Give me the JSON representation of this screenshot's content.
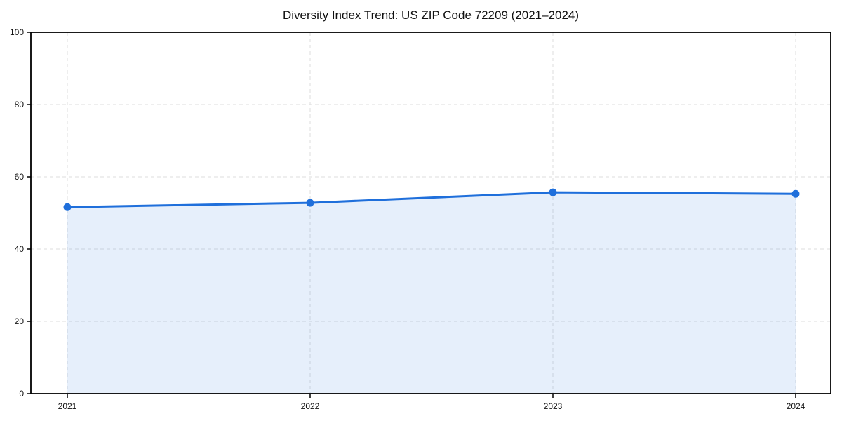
{
  "page": {
    "background": "#ffffff"
  },
  "chart_data": {
    "type": "area",
    "title": "Diversity Index Trend: US ZIP Code 72209 (2021–2024)",
    "categories": [
      "2021",
      "2022",
      "2023",
      "2024"
    ],
    "values": [
      51.6,
      52.8,
      55.7,
      55.3
    ],
    "xlabel": "",
    "ylabel": "",
    "ylim": [
      0,
      100
    ],
    "yticks": [
      0,
      20,
      40,
      60,
      80,
      100
    ],
    "grid": true,
    "grid_style": "dashed",
    "legend_position": "none",
    "marker": "circle",
    "colors": {
      "line": "#1f6fdb",
      "marker": "#1f6fdb",
      "fill": "rgba(31,111,219,0.11)",
      "grid": "#dedede",
      "axis": "#000000",
      "tick_text": "#111111"
    }
  }
}
